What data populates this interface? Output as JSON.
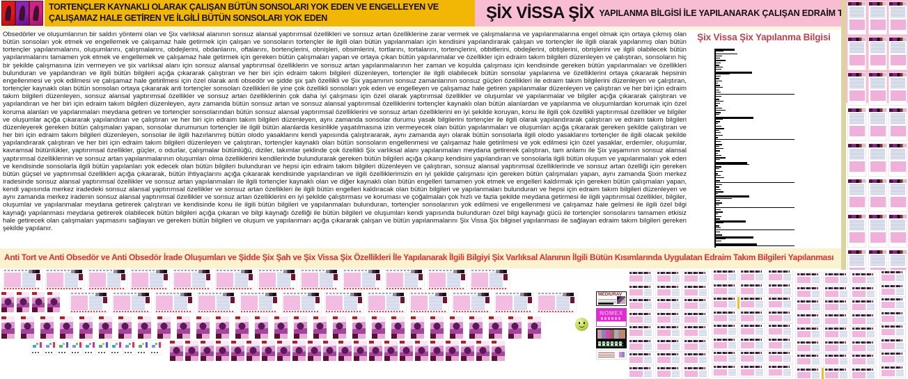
{
  "topbar": {
    "logo_panels": [
      "#e11818",
      "#8426b8",
      "#d0208a"
    ],
    "banner": {
      "text": "TORTENÇLER KAYNAKLI OLARAK ÇALIŞAN BÜTÜN SONSOLARI YOK EDEN VE ENGELLEYEN VE ÇALIŞAMAZ HALE GETİREN VE İLGİLİ BÜTÜN SONSOLARI YOK EDEN",
      "bg": "#F2B705"
    },
    "title": {
      "main": "ŞİX VİSSA ŞİX",
      "rest": "YAPILANMA BİLGİSİ İLE YAPILANARAK ÇALIŞAN EDRAİM TAKIM BİLGİLERİ",
      "bg": "#F8BDD3"
    }
  },
  "body_text": "Obsedörler ve oluşumlarının bir saldırı yöntemi olan ve Şix varlıksal alanının sonsuz alansal yaptırımsal özellikleri ve sonsuz artan özelliklerine zarar vermek ve çalışmalarına ve yapılanmalarına engel olmak için ortaya çıkmış olan bütün sonsoları yok etmek ve engellemek ve çalışamaz hale getirmek için çalışan ve sonsoların tortençler ile ilgili olan bütün yapılanmaları için kendisini yapılandırarak çalışan ve tortençler ile ilgili olarak yapılanmış olan bütün tortençler yapılanmalarını, oluşumlarını, çalışmalarını, obdejlerini, obdanlarını, oftalarını, bortençlerini, obnişleri, obsimlerini, tortlarını, tortalarını, tortençlerini, obbitlerini, obdejlerini, obtişlerini, obrişlerini ve ilgili olabilecek bütün yapılanmalarını tamamen yok etmek ve engellemek ve çalışamaz hale getirmek için gereken bütün çalışmaları yapan ve ortaya çıkan bütün yapılanmalar ve özellikler için edraim takım bilgileri düzenleyen ve çalıştıran, sonsoların hiç bir şekilde çalışmasına izin vermeyen ve şix varlıksal alanı için sonsuz alansal yaptırımsal özelliklerin ve sonsuz artan yapılanmalarının her zaman ve koşulda çalışması için kendisinde gereken bütün yapılanmaları ve özellikleri bulunduran ve yapılandıran ve ilgili bütün bilgileri açığa çıkararak çalıştıran ve her biri için edraim takım bilgileri düzenleyen, tortençler ile ilgili olabilecek bütün sonsolar yapılanma ve özelliklerini ortaya çıkararak hepsinin engellenmesi ve yok edilmesi ve çalışamaz hale getirilmesi için özel olarak anti obsedör ve şidde şix şah özellikli ve Şix yaşamının sonsuz zamanlarının sonsuz güçleri özellikleri ile edraim takım bilgilerini düzenleyen ve çalıştıran, tortençler kaynaklı olan bütün sonsoları ortaya çıkararak anti tortençler sonsoları özellikleri ile yine çok özellikli sonsoları yok eden ve engelleyen ve çalışamaz hale getiren yapılanmalar düzenleyen ve çalıştıran ve her biri için edraim takım bilgileri düzenleyen, sonsuz alansal yaptırımsal özellikler ve sonsuz artan özelliklerinin çok daha iyi çalışması için özel olarak yaptırımsal özellikler ve oluşumlar ve yapılanmalar ve bilgiler açığa çıkararak çalıştıran ve yapılandıran ve her biri için edraim takım bilgileri düzenleyen, aynı zamanda bütün sonsuz artan ve sonsuz alansal yaptırımsal özelliklerini tortençler kaynaklı olan bütün alanlardan ve yapılanma ve oluşumlardan korumak için özel koruma alanları ve yapılanmaları meydana getiren ve tortençler sonsolarından bütün sonsuz alansal yaptırımsal özelliklerini ve sonsuz artan özelliklerini en iyi şekilde koruyan, konu ile ilgili çok özellikli yaptırımsal özellikler ve bilgiler ve oluşumlar açığa çıkararak yapılandıran ve çalıştıran ve her biri için edraim takım bilgileri düzenleyen, aynı zamanda sonsolar durumu yasak bilgilerini tortençler ile ilgili olarak yapılandırarak çalıştıran ve edraim takım bilgileri düzenleyerek gereken bütün çalışmaları yapan, sonsolar durumunun tortençler ile ilgili bütün alanlarda kesinlikle yaşatılmasına izin vermeyecek olan bütün yapılanmaları ve oluşumları açığa çıkararak gereken şekilde çalıştıran ve her biri için edraim takım bilgileri düzenleyen, sonsolar ile ilgili hazırlanmış bütün olodo yasaklarını kendi yapısında çalıştırararak, aynı zamanda ayrı olarak bütün sonsolarla ilgili olodo yasaklarını tortençler ile ilgili olacak şekilde yapılandırarak çalıştıran ve her biri için edraim takım bilgileri düzenleyen ve çalıştıran, tortençler kaynaklı olan bütün sonsoların engellenmesi ve çalışamaz hale getirilmesi ve yok edilmesi için özel yasaklar, erdemler, oluşumlar, kavramsal bütünlükler, yaptırımsal özellikler, güçler, o odurlar, çalışmalar bütünlüğü, diziler, takımlar şeklinde çok özellikli Şix varlıksal alanı yapılanmaları meydana getirerek çalıştıran, tam anlamı ile Şix yaşamının sonsuz alansal yaptırımsal özelliklerinin ve sonsuz artan yapılanmalarının oluşumları olma özelliklerini kendilerinde bulundurarak gereken bütün bilgileri açığa çıkarıp kendisini yapılandıran ve sonsolarla ilgili bütün oluşum ve yapılanmaları yok eden ve kendisinde sonsolarla ilgili bütün yapılanları yok edecek olan bütün bilgileri bulunduran ve hepsi için edraim takım bilgileri düzenleyen ve çalıştıran, sonsuz alansal yaptırımsal özelliklerinde ve sonsuz artan özelliği için gereken bütün güçsel ve yaptırımsal özellikleri açığa çıkararak, bütün ihtiyaçlarını açığa çıkararak kendisinde yapılandıran ve ilgili özelliklerimizin en iyi şekilde çalışması için gereken bütün çalışmaları yapan, aynı zamanda Şixin merkez iradesinde sonsuz alansal yaptırımsal özellikler ve sonsuz artan yapılanmaları ile ilgili tortençler kaynaklı olan ve diğer kaynaklı olan bütün engelleri tamamen yok etmek ve engelleri kaldırmak için gereken bütün çalışmaları yapan, kendi yapısında merkez iradedeki sonsuz alansal yaptırımsal özellikler ve sonsuz artan özellikleri ile ilgili bütün engelleri kaldıracak olan bütün bilgileri ve yapılanmaları bulunduran ve hepsi için edraim takım bilgileri düzenleyen ve aynı zamanda merkez iradenin sonsuz alansal yaptırımsal özellikler ve sonsuz artan özelliklerini en iyi şekilde çalıştırması ve koruması ve çoğalmaları çok hızlı ve fazla şekilde meydana getirmesi ile ilgili yaptırımsal özellikler, bilgiler, oluşumlar ve yapılanmalar meydana getirerek çalıştıran ve kendisinde konu ile ilgili bütün bilgileri ve yapılanmaları bulunduran, tortençler sonsolarının yok edilmesi ve engellenmesi ve çalışamaz hale gelmesi ile ilgili özel bilgi kaynağı yapılanması meydana getirerek olabilecek bütün bilgileri açığa çıkaran ve bilgi kaynağı özelliği ile bütün bilgileri ve oluşumları kendi yapısında bulunduran özel bilgi kaynağı gücü ile tortençler sonsolarını tamamen etkisiz hale getirecek olan çalışmaları yapmasını sağlayan ve gereken bütün bilgileri ve oluşum ve yapılanmarı açığa çıkararak çalışan ve bütün yapılanmalarını Şix Vissa Şix bilgisel yapılanması ile sağlayan edraim takım bilgileri gereken şekilde yapılanır.",
  "chart_data": {
    "type": "bar",
    "orientation": "horizontal",
    "title": "Şix Vissa Şix Yapılanma Bilgisi",
    "title_color": "#C0404E",
    "bar_color": "#000000",
    "xlim": [
      0,
      100
    ],
    "grid": false,
    "legend": false,
    "axis_labels": "none (unlabeled spectrum of horizontal black bars on white)",
    "bars": [
      [
        24,
        3
      ],
      [
        10,
        1
      ],
      [
        27,
        1
      ],
      [
        8,
        1
      ],
      [
        5,
        1
      ],
      [
        12,
        2
      ],
      [
        6,
        1
      ],
      [
        4,
        2
      ],
      [
        9,
        1
      ],
      [
        7,
        1
      ],
      [
        46,
        3
      ],
      [
        18,
        1
      ],
      [
        6,
        1
      ],
      [
        4,
        2
      ],
      [
        8,
        1
      ],
      [
        3,
        1
      ],
      [
        5,
        2
      ],
      [
        9,
        1
      ],
      [
        4,
        1
      ],
      [
        6,
        1
      ],
      [
        100,
        1
      ],
      [
        7,
        1
      ],
      [
        4,
        2
      ],
      [
        10,
        1
      ],
      [
        5,
        1
      ],
      [
        3,
        2
      ],
      [
        8,
        1
      ],
      [
        12,
        1
      ],
      [
        6,
        2
      ],
      [
        4,
        1
      ],
      [
        48,
        3
      ],
      [
        9,
        1
      ],
      [
        5,
        2
      ],
      [
        3,
        1
      ],
      [
        7,
        1
      ],
      [
        11,
        2
      ],
      [
        4,
        1
      ],
      [
        6,
        1
      ],
      [
        9,
        1
      ],
      [
        3,
        2
      ],
      [
        100,
        1
      ],
      [
        6,
        1
      ],
      [
        8,
        2
      ],
      [
        4,
        1
      ],
      [
        10,
        1
      ],
      [
        5,
        2
      ],
      [
        3,
        1
      ],
      [
        7,
        1
      ],
      [
        12,
        2
      ],
      [
        5,
        1
      ],
      [
        40,
        3
      ],
      [
        42,
        1
      ],
      [
        7,
        2
      ],
      [
        4,
        1
      ],
      [
        9,
        1
      ],
      [
        3,
        2
      ],
      [
        6,
        1
      ],
      [
        11,
        1
      ],
      [
        5,
        2
      ],
      [
        100,
        1
      ],
      [
        8,
        1
      ],
      [
        4,
        2
      ],
      [
        6,
        1
      ],
      [
        10,
        2
      ],
      [
        3,
        1
      ],
      [
        42,
        3
      ],
      [
        20,
        1
      ],
      [
        5,
        1
      ],
      [
        8,
        2
      ],
      [
        4,
        1
      ],
      [
        100,
        1
      ],
      [
        6,
        1
      ],
      [
        9,
        2
      ],
      [
        3,
        1
      ],
      [
        7,
        1
      ],
      [
        5,
        2
      ],
      [
        38,
        3
      ],
      [
        10,
        1
      ],
      [
        4,
        2
      ],
      [
        6,
        1
      ],
      [
        100,
        1
      ],
      [
        5,
        1
      ],
      [
        8,
        2
      ],
      [
        48,
        3
      ],
      [
        12,
        1
      ],
      [
        7,
        1
      ],
      [
        52,
        4
      ],
      [
        100,
        1
      ]
    ]
  },
  "heading2": {
    "text": "Anti Tort ve Anti Obsedör ve Anti Obsedör İrade Oluşumları ve Şidde Şix Şah ve Şix Vissa Şix Özellikleri İle Yapılanarak İlgili Bilgiyi Şix Varlıksal Alanının İlgili Bütün Kısımlarında Uygulatan Edraim Takım Bilgileri Yapılanması",
    "color": "#E12F2F",
    "bg": "#FBF2D0"
  },
  "cards": {
    "mediurav": {
      "title": "MEDİURAV"
    },
    "nomex": {
      "title": "NOMEX"
    }
  },
  "thumbnails": {
    "right_grid": {
      "cols": 3,
      "rows": 8
    },
    "bottom_right_grid": {
      "cols": 10,
      "rows": 8
    },
    "row_a_landscape": 12,
    "row_b_minis": 4,
    "row_b_landscape": 12,
    "row_c_posters": 28,
    "row_d_tiny": 10,
    "row_d_posters": 22
  }
}
